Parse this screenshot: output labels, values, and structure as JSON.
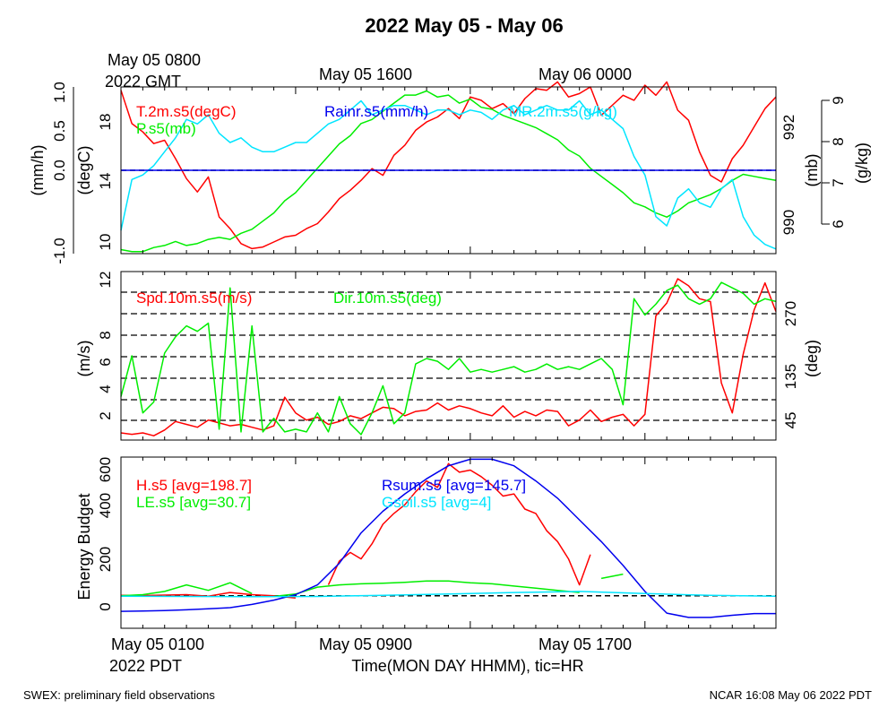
{
  "title": "2022 May 05 - May 06",
  "top_time": {
    "first": "May 05 0800",
    "first_sub": "2022 GMT",
    "second": "May 05 1600",
    "third": "May 06 0000"
  },
  "bottom_time": {
    "first": "May 05 0100",
    "first_sub": "2022 PDT",
    "second": "May 05 0900",
    "third": "May 05 1700",
    "xlabel": "Time(MON DAY HHMM), tic=HR"
  },
  "footer": {
    "left": "SWEX: preliminary field observations",
    "right": "NCAR 16:08 May 06 2022 PDT"
  },
  "colors": {
    "red": "#ff0000",
    "green": "#00ee00",
    "cyan": "#00e5ff",
    "blue": "#0000ee",
    "black": "#000000"
  },
  "chart_data": [
    {
      "type": "line",
      "panel": "top",
      "x_range_hours_pdt": [
        0,
        30
      ],
      "axes": {
        "rain": {
          "label": "(mm/h)",
          "ticks": [
            "1.0",
            "0.5",
            "0.0",
            "-1.0"
          ]
        },
        "temp": {
          "label": "(degC)",
          "ticks": [
            "18",
            "14",
            "10"
          ],
          "ylim": [
            9.5,
            19.5
          ]
        },
        "pres": {
          "label": "(mb)",
          "ticks": [
            "992",
            "990"
          ],
          "ylim": [
            989.3,
            993.4
          ]
        },
        "mr": {
          "label": "(g/kg)",
          "ticks": [
            "9",
            "8",
            "7",
            "6"
          ],
          "ylim": [
            5.7,
            9.3
          ]
        }
      },
      "series": [
        {
          "name": "T.2m.s5(degC)",
          "color": "red",
          "axis": "temp",
          "x": [
            0,
            0.5,
            1,
            1.5,
            2,
            2.5,
            3,
            3.5,
            4,
            4.5,
            5,
            5.5,
            6,
            6.5,
            7,
            7.5,
            8,
            8.5,
            9,
            9.5,
            10,
            10.5,
            11,
            11.5,
            12,
            12.5,
            13,
            13.5,
            14,
            14.5,
            15,
            15.5,
            16,
            16.5,
            17,
            17.5,
            18,
            18.5,
            19,
            19.5,
            20,
            20.5,
            21,
            21.5,
            22,
            22.5,
            23,
            23.5,
            24,
            24.5,
            25,
            25.5,
            26,
            26.5,
            27,
            27.5,
            28,
            28.5,
            29,
            29.5,
            30
          ],
          "y": [
            19.3,
            17.3,
            16.8,
            16.1,
            16.3,
            15.2,
            14.0,
            13.2,
            14.1,
            11.7,
            11.0,
            10.1,
            9.8,
            9.9,
            10.2,
            10.5,
            10.6,
            11.0,
            11.3,
            12.0,
            12.8,
            13.3,
            13.9,
            14.6,
            14.2,
            15.4,
            16.0,
            16.9,
            17.4,
            17.7,
            18.2,
            17.6,
            18.9,
            18.7,
            18.2,
            18.5,
            17.9,
            18.8,
            19.4,
            19.3,
            19.8,
            18.9,
            19.1,
            19.5,
            17.8,
            18.4,
            19.0,
            18.7,
            19.6,
            19.0,
            19.8,
            18.1,
            17.5,
            15.6,
            14.2,
            13.8,
            15.2,
            16.0,
            17.1,
            18.2,
            18.9
          ]
        },
        {
          "name": "P.s5(mb)",
          "color": "green",
          "axis": "pres",
          "x": [
            0,
            0.5,
            1,
            1.5,
            2,
            2.5,
            3,
            3.5,
            4,
            4.5,
            5,
            5.5,
            6,
            6.5,
            7,
            7.5,
            8,
            8.5,
            9,
            9.5,
            10,
            10.5,
            11,
            11.5,
            12,
            12.5,
            13,
            13.5,
            14,
            14.5,
            15,
            15.5,
            16,
            16.5,
            17,
            17.5,
            18,
            18.5,
            19,
            19.5,
            20,
            20.5,
            21,
            21.5,
            22,
            22.5,
            23,
            23.5,
            24,
            24.5,
            25,
            25.5,
            26,
            26.5,
            27,
            27.5,
            28,
            28.5,
            29,
            29.5,
            30
          ],
          "y": [
            989.4,
            989.35,
            989.35,
            989.45,
            989.5,
            989.6,
            989.5,
            989.55,
            989.65,
            989.7,
            989.65,
            989.8,
            989.9,
            990.1,
            990.3,
            990.6,
            990.8,
            991.1,
            991.4,
            991.7,
            992.0,
            992.2,
            992.5,
            992.6,
            992.8,
            993.0,
            993.2,
            993.2,
            993.3,
            993.15,
            993.2,
            993.0,
            993.1,
            992.9,
            992.85,
            992.7,
            992.6,
            992.5,
            992.4,
            992.25,
            992.1,
            991.85,
            991.7,
            991.4,
            991.2,
            991.0,
            990.8,
            990.55,
            990.45,
            990.3,
            990.2,
            990.35,
            990.55,
            990.65,
            990.75,
            990.9,
            991.1,
            991.25,
            991.2,
            991.15,
            991.1
          ]
        },
        {
          "name": "MR.2m.s5(g/kg)",
          "color": "cyan",
          "axis": "mr",
          "x": [
            0,
            0.5,
            1,
            1.5,
            2,
            2.5,
            3,
            3.5,
            4,
            4.5,
            5,
            5.5,
            6,
            6.5,
            7,
            7.5,
            8,
            8.5,
            9,
            9.5,
            10,
            10.5,
            11,
            11.5,
            12,
            12.5,
            13,
            13.5,
            14,
            14.5,
            15,
            15.5,
            16,
            16.5,
            17,
            17.5,
            18,
            18.5,
            19,
            19.5,
            20,
            20.5,
            21,
            21.5,
            22,
            22.5,
            23,
            23.5,
            24,
            24.5,
            25,
            25.5,
            26,
            26.5,
            27,
            27.5,
            28,
            28.5,
            29,
            29.5,
            30
          ],
          "y": [
            6.2,
            7.3,
            7.4,
            7.6,
            7.9,
            8.2,
            8.6,
            8.5,
            8.7,
            8.3,
            8.1,
            8.2,
            8.0,
            7.9,
            7.9,
            8.0,
            8.1,
            8.1,
            8.3,
            8.5,
            8.6,
            8.8,
            9.0,
            8.7,
            8.8,
            8.9,
            8.9,
            8.8,
            8.7,
            8.8,
            8.8,
            8.7,
            8.8,
            8.75,
            8.6,
            8.8,
            8.9,
            8.7,
            8.8,
            8.9,
            8.8,
            8.8,
            9.0,
            8.7,
            8.8,
            8.6,
            8.4,
            7.8,
            7.4,
            6.5,
            6.3,
            6.9,
            7.1,
            6.8,
            6.7,
            7.1,
            7.3,
            6.5,
            6.1,
            5.9,
            5.8
          ]
        },
        {
          "name": "Rainr.s5(mm/h)",
          "color": "blue",
          "axis": "rain",
          "x": [
            0,
            30
          ],
          "y": [
            0,
            0
          ]
        }
      ]
    },
    {
      "type": "line",
      "panel": "middle",
      "x_range_hours_pdt": [
        0,
        30
      ],
      "axes": {
        "speed": {
          "label": "(m/s)",
          "ticks": [
            "12",
            "8",
            "6",
            "4",
            "2"
          ],
          "ylim": [
            0.5,
            12.3
          ]
        },
        "dir": {
          "label": "(deg)",
          "ticks": [
            "270",
            "135",
            "45"
          ],
          "ylim": [
            10,
            320
          ]
        }
      },
      "series": [
        {
          "name": "Spd.10m.s5(m/s)",
          "color": "red",
          "axis": "speed",
          "x": [
            0,
            0.5,
            1,
            1.5,
            2,
            2.5,
            3,
            3.5,
            4,
            4.5,
            5,
            5.5,
            6,
            6.5,
            7,
            7.5,
            8,
            8.5,
            9,
            9.5,
            10,
            10.5,
            11,
            11.5,
            12,
            12.5,
            13,
            13.5,
            14,
            14.5,
            15,
            15.5,
            16,
            16.5,
            17,
            17.5,
            18,
            18.5,
            19,
            19.5,
            20,
            20.5,
            21,
            21.5,
            22,
            22.5,
            23,
            23.5,
            24,
            24.5,
            25,
            25.5,
            26,
            26.5,
            27,
            27.5,
            28,
            28.5,
            29,
            29.5,
            30
          ],
          "y": [
            1.0,
            0.9,
            1.0,
            0.8,
            1.2,
            1.8,
            1.6,
            1.4,
            1.9,
            1.7,
            1.5,
            1.6,
            1.4,
            1.2,
            1.5,
            3.5,
            2.4,
            1.9,
            2.1,
            1.6,
            1.8,
            2.2,
            2.0,
            2.4,
            2.8,
            2.7,
            2.2,
            2.5,
            2.6,
            3.1,
            2.6,
            2.9,
            2.7,
            2.4,
            2.2,
            2.9,
            2.1,
            2.5,
            2.2,
            2.6,
            2.5,
            1.5,
            1.9,
            2.6,
            1.8,
            2.1,
            2.3,
            1.5,
            2.3,
            9.2,
            10.1,
            11.8,
            11.3,
            10.4,
            10.2,
            4.5,
            2.4,
            6.5,
            9.6,
            11.5,
            9.5
          ]
        },
        {
          "name": "Dir.10m.s5(deg)",
          "color": "green",
          "axis": "dir",
          "x": [
            0,
            0.5,
            1,
            1.5,
            2,
            2.5,
            3,
            3.5,
            4,
            4.5,
            5,
            5.5,
            6,
            6.5,
            7,
            7.5,
            8,
            8.5,
            9,
            9.5,
            10,
            10.5,
            11,
            11.5,
            12,
            12.5,
            13,
            13.5,
            14,
            14.5,
            15,
            15.5,
            16,
            16.5,
            17,
            17.5,
            18,
            18.5,
            19,
            19.5,
            20,
            20.5,
            21,
            21.5,
            22,
            22.5,
            23,
            23.5,
            24,
            24.5,
            25,
            25.5,
            26,
            26.5,
            27,
            27.5,
            28,
            28.5,
            29,
            29.5,
            30
          ],
          "y": [
            90,
            165,
            60,
            80,
            170,
            200,
            220,
            210,
            225,
            30,
            290,
            25,
            220,
            25,
            50,
            25,
            30,
            25,
            60,
            25,
            90,
            40,
            20,
            60,
            110,
            40,
            60,
            150,
            160,
            155,
            140,
            160,
            135,
            140,
            135,
            140,
            145,
            135,
            140,
            150,
            140,
            145,
            140,
            150,
            160,
            140,
            75,
            270,
            240,
            260,
            285,
            295,
            270,
            260,
            270,
            300,
            290,
            280,
            260,
            270,
            265
          ]
        }
      ]
    },
    {
      "type": "line",
      "panel": "bottom",
      "ylabel": "Energy Budget",
      "x_range_hours_pdt": [
        0,
        30
      ],
      "yticks": [
        "600",
        "400",
        "200",
        "0"
      ],
      "ylim": [
        -150,
        640
      ],
      "series": [
        {
          "name": "H.s5 [avg=198.7]",
          "color": "red",
          "x": [
            0,
            1,
            2,
            3,
            4,
            5,
            6,
            7,
            8,
            9.5,
            10,
            10.5,
            11,
            11.5,
            12,
            12.5,
            13,
            13.5,
            14,
            14.5,
            15,
            15.5,
            16,
            16.5,
            17,
            17.5,
            18,
            18.5,
            19,
            19.5,
            20,
            20.5,
            21,
            21.5
          ],
          "y": [
            2,
            1,
            3,
            5,
            -2,
            15,
            5,
            0,
            -10,
            50,
            160,
            200,
            170,
            240,
            330,
            380,
            420,
            480,
            530,
            500,
            610,
            570,
            580,
            550,
            510,
            460,
            470,
            400,
            380,
            300,
            250,
            170,
            50,
            190
          ]
        },
        {
          "name": "LE.s5 [avg=30.7]",
          "color": "green",
          "x": [
            0,
            1,
            2,
            3,
            4,
            5,
            6,
            7,
            8,
            9,
            9.5,
            10,
            11,
            12,
            13,
            14,
            15,
            16,
            17,
            18,
            19,
            20,
            21,
            22,
            23
          ],
          "y": [
            0,
            5,
            20,
            50,
            25,
            60,
            10,
            -3,
            8,
            40,
            45,
            50,
            55,
            58,
            62,
            68,
            68,
            60,
            55,
            45,
            35,
            25,
            15,
            80,
            100
          ]
        },
        {
          "name": "Rsum.s5 [avg=145.7]",
          "color": "blue",
          "x": [
            0,
            1,
            2,
            3,
            4,
            5,
            6,
            7,
            8,
            9,
            10,
            11,
            12,
            13,
            14,
            15,
            16,
            17,
            18,
            19,
            20,
            21,
            22,
            23,
            24,
            25,
            26,
            27,
            28,
            29,
            30
          ],
          "y": [
            -72,
            -70,
            -68,
            -65,
            -60,
            -55,
            -40,
            -20,
            5,
            50,
            150,
            290,
            390,
            470,
            540,
            600,
            630,
            630,
            600,
            530,
            450,
            350,
            250,
            140,
            20,
            -80,
            -100,
            -100,
            -90,
            -82,
            -82
          ]
        },
        {
          "name": "Gsoil.s5 [avg=4]",
          "color": "cyan",
          "x": [
            0,
            3,
            6,
            9,
            12,
            15,
            18,
            21,
            24,
            27,
            30
          ],
          "y": [
            -2,
            -3,
            -4,
            -3,
            2,
            8,
            15,
            20,
            10,
            2,
            -2
          ]
        }
      ]
    }
  ]
}
